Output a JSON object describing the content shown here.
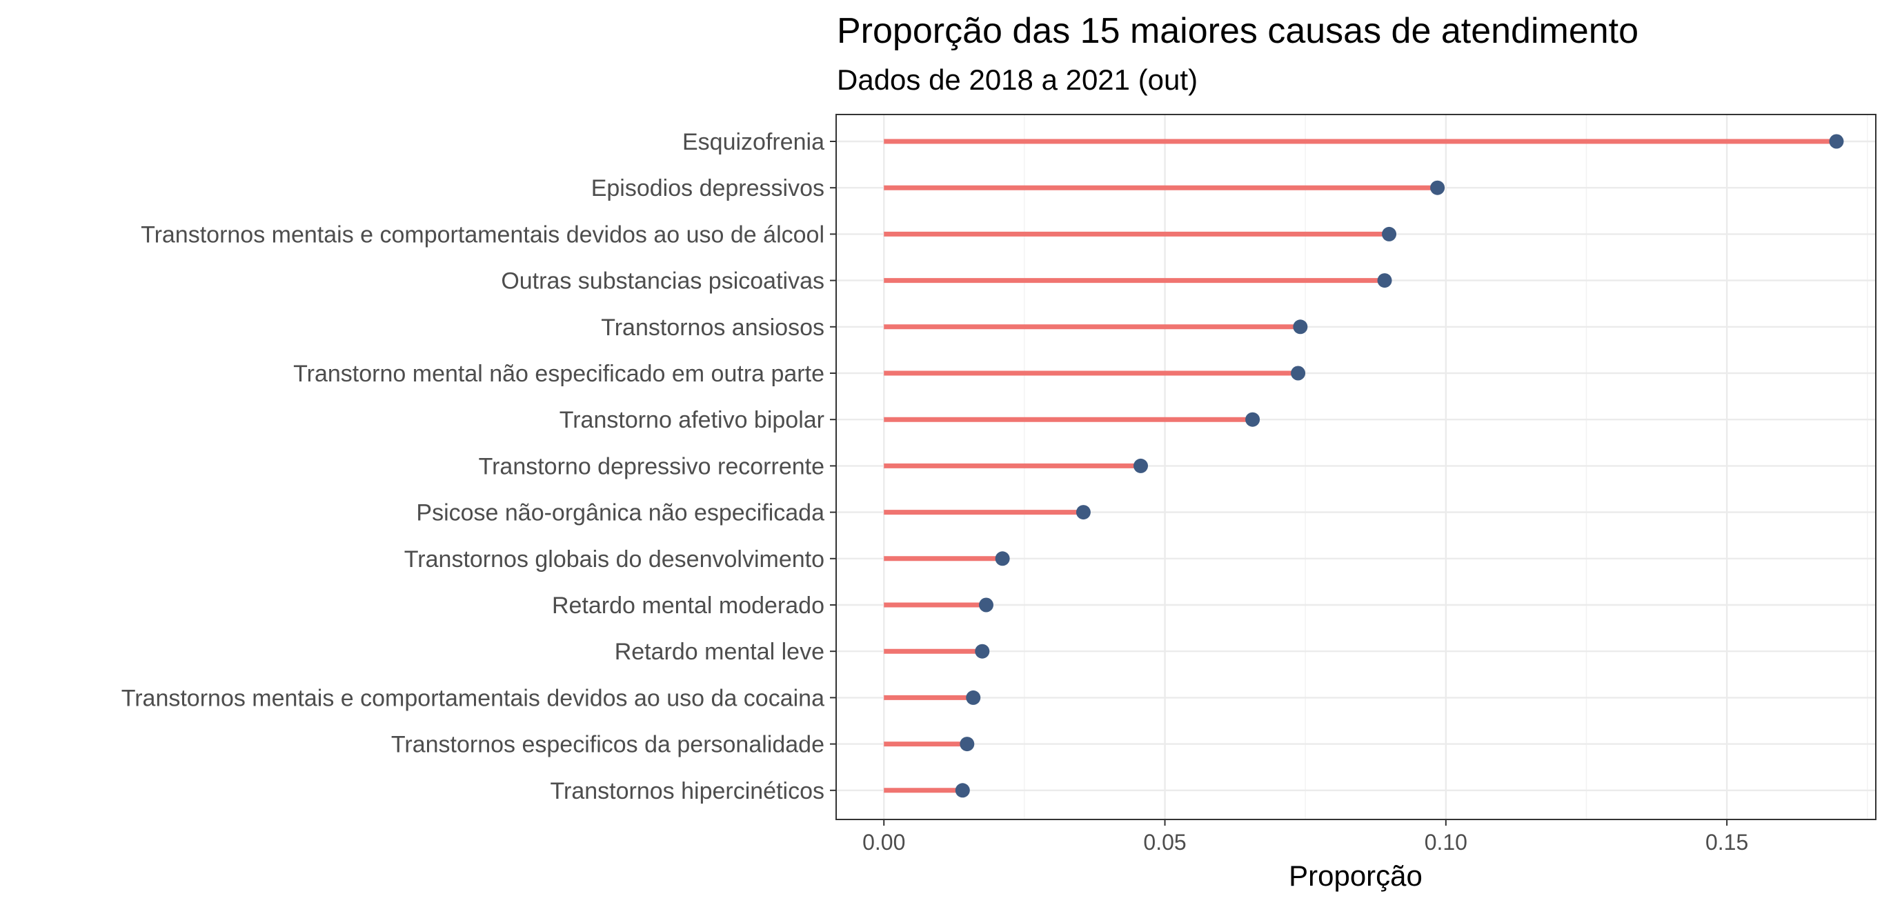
{
  "chart_data": {
    "type": "lollipop",
    "title": "Proporção das 15 maiores causas de atendimento",
    "subtitle": "Dados de 2018 a 2021 (out)",
    "xlabel": "Proporção",
    "ylabel": "",
    "xlim": [
      -0.0085,
      0.1765
    ],
    "xticks": [
      0.0,
      0.05,
      0.1,
      0.15
    ],
    "xtick_labels": [
      "0.00",
      "0.05",
      "0.10",
      "0.15"
    ],
    "grid": true,
    "legend": "none",
    "colors": {
      "segment": "#f07470",
      "point": "#3e5a82"
    },
    "categories": [
      "Esquizofrenia",
      "Episodios depressivos",
      "Transtornos mentais e comportamentais devidos ao uso de álcool",
      "Outras substancias psicoativas",
      "Transtornos ansiosos",
      "Transtorno mental não especificado em outra parte",
      "Transtorno afetivo bipolar",
      "Transtorno depressivo recorrente",
      "Psicose não-orgânica não especificada",
      "Transtornos globais do desenvolvimento",
      "Retardo mental moderado",
      "Retardo mental leve",
      "Transtornos mentais e comportamentais devidos ao uso da cocaina",
      "Transtornos especificos da personalidade",
      "Transtornos hipercinéticos"
    ],
    "values": [
      0.1695,
      0.0985,
      0.0899,
      0.0891,
      0.0741,
      0.0737,
      0.0656,
      0.0457,
      0.0355,
      0.0211,
      0.0182,
      0.0175,
      0.0159,
      0.0148,
      0.014
    ]
  }
}
